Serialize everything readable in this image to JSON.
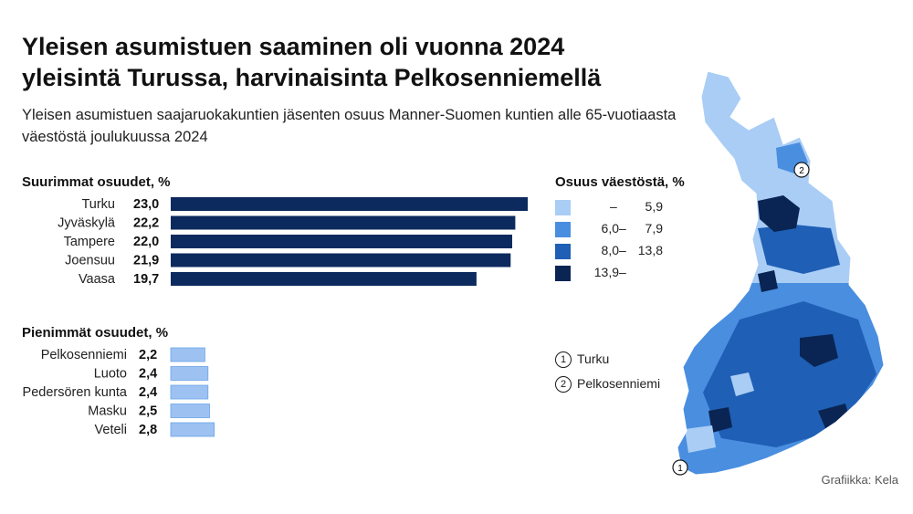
{
  "title": "Yleisen asumistuen saaminen oli vuonna 2024 yleisintä Turussa, harvinaisinta Pelkosenniemellä",
  "subtitle": "Yleisen asumistuen saajaruokakuntien jäsenten osuus Manner-Suomen kuntien alle 65-vuotiaasta väestöstä joulukuussa 2024",
  "credit": "Grafiikka: Kela",
  "colors": {
    "dark_navy": "#0c2a5e",
    "light_blue": "#9dc2f2",
    "class1": "#a9cdf5",
    "class2": "#4a8ee0",
    "class3": "#1f5fb5",
    "class4": "#0a2553"
  },
  "chart_data": [
    {
      "type": "bar",
      "orientation": "horizontal",
      "title": "Suurimmat osuudet, %",
      "categories": [
        "Turku",
        "Jyväskylä",
        "Tampere",
        "Joensuu",
        "Vaasa"
      ],
      "values": [
        23.0,
        22.2,
        22.0,
        21.9,
        19.7
      ],
      "value_labels": [
        "23,0",
        "22,2",
        "22,0",
        "21,9",
        "19,7"
      ],
      "color": "#0c2a5e",
      "xlim": [
        0,
        23.0
      ]
    },
    {
      "type": "bar",
      "orientation": "horizontal",
      "title": "Pienimmät osuudet, %",
      "categories": [
        "Pelkosenniemi",
        "Luoto",
        "Pedersören kunta",
        "Masku",
        "Veteli"
      ],
      "values": [
        2.2,
        2.4,
        2.4,
        2.5,
        2.8
      ],
      "value_labels": [
        "2,2",
        "2,4",
        "2,4",
        "2,5",
        "2,8"
      ],
      "color": "#9dc2f2",
      "xlim": [
        0,
        23.0
      ]
    }
  ],
  "legend": {
    "title": "Osuus väestöstä, %",
    "items": [
      {
        "lo": "",
        "hi": "5,9",
        "color": "#a9cdf5"
      },
      {
        "lo": "6,0",
        "hi": "7,9",
        "color": "#4a8ee0"
      },
      {
        "lo": "8,0",
        "hi": "13,8",
        "color": "#1f5fb5"
      },
      {
        "lo": "13,9",
        "hi": "",
        "color": "#0a2553"
      }
    ]
  },
  "markers": [
    {
      "number": "1",
      "label": "Turku"
    },
    {
      "number": "2",
      "label": "Pelkosenniemi"
    }
  ]
}
